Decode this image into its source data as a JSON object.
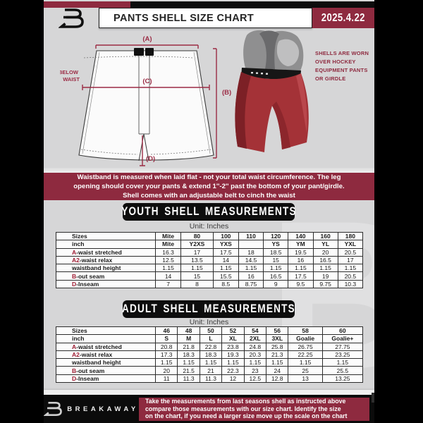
{
  "colors": {
    "maroon": "#8e2a3f",
    "black": "#0c0c0c",
    "doc_bg": "#d6d6d7",
    "table_prefix_red": "#9e1c33",
    "shell_red": "#a43237",
    "girdle_gray": "#8f8f90"
  },
  "header": {
    "title": "PANTS SHELL SIZE CHART",
    "date": "2025.4.22"
  },
  "diagram": {
    "label_a": "(A)",
    "label_b": "(B)",
    "label_c": "(C)",
    "label_d": "(D)",
    "below_waist_line1": "7'' BELOW",
    "below_waist_line2": "WAIST",
    "photo_note": "SHELLS ARE WORN\nOVER HOCKEY\nEQUIPMENT PANTS\nOR GIRDLE"
  },
  "notice": {
    "text": "Waistband is measured when laid flat - not your total waist circumference. The leg\nopening should cover your pants & extend 1''-2'' past the bottom of your pant/girdle.\nShell comes with an adjustable belt to cinch the waist"
  },
  "youth": {
    "heading": "YOUTH SHELL MEASUREMENTS",
    "unit": "Unit: Inches",
    "table": {
      "rows": [
        {
          "header": true,
          "prefix": "",
          "label": "Sizes",
          "values": [
            "Mite",
            "80",
            "100",
            "110",
            "120",
            "140",
            "160",
            "180"
          ]
        },
        {
          "header": true,
          "prefix": "",
          "label": "inch",
          "values": [
            "Mite",
            "Y2XS",
            "YXS",
            "",
            "YS",
            "YM",
            "YL",
            "YXL"
          ]
        },
        {
          "header": false,
          "prefix": "A",
          "label": "-waist stretched",
          "values": [
            "16.3",
            "17",
            "17.5",
            "18",
            "18.5",
            "19.5",
            "20",
            "20.5"
          ]
        },
        {
          "header": false,
          "prefix": "A2",
          "label": "-waist relax",
          "values": [
            "12.5",
            "13.5",
            "14",
            "14.5",
            "15",
            "16",
            "16.5",
            "17"
          ]
        },
        {
          "header": false,
          "prefix": "",
          "label": "waistband height",
          "values": [
            "1.15",
            "1.15",
            "1.15",
            "1.15",
            "1.15",
            "1.15",
            "1.15",
            "1.15"
          ]
        },
        {
          "header": false,
          "prefix": "B",
          "label": "-out seam",
          "values": [
            "14",
            "15",
            "15.5",
            "16",
            "16.5",
            "17.5",
            "19",
            "20.5"
          ]
        },
        {
          "header": false,
          "prefix": "D",
          "label": "-Inseam",
          "values": [
            "7",
            "8",
            "8.5",
            "8.75",
            "9",
            "9.5",
            "9.75",
            "10.3"
          ]
        }
      ]
    }
  },
  "adult": {
    "heading": "ADULT SHELL MEASUREMENTS",
    "unit": "Unit: Inches",
    "table": {
      "rows": [
        {
          "header": true,
          "prefix": "",
          "label": "Sizes",
          "values": [
            "46",
            "48",
            "50",
            "52",
            "54",
            "56",
            "58",
            "60"
          ]
        },
        {
          "header": true,
          "prefix": "",
          "label": "inch",
          "values": [
            "S",
            "M",
            "L",
            "XL",
            "2XL",
            "3XL",
            "Goalie",
            "Goalie+"
          ]
        },
        {
          "header": false,
          "prefix": "A",
          "label": "-waist stretched",
          "values": [
            "20.8",
            "21.8",
            "22.8",
            "23.8",
            "24.8",
            "25.8",
            "26.75",
            "27.75"
          ]
        },
        {
          "header": false,
          "prefix": "A2",
          "label": "-waist relax",
          "values": [
            "17.3",
            "18.3",
            "18.3",
            "19.3",
            "20.3",
            "21.3",
            "22.25",
            "23.25"
          ]
        },
        {
          "header": false,
          "prefix": "",
          "label": "waistband height",
          "values": [
            "1.15",
            "1.15",
            "1.15",
            "1.15",
            "1.15",
            "1.15",
            "1.15",
            "1.15"
          ]
        },
        {
          "header": false,
          "prefix": "B",
          "label": "-out seam",
          "values": [
            "20",
            "21.5",
            "21",
            "22.3",
            "23",
            "24",
            "25",
            "25.5"
          ]
        },
        {
          "header": false,
          "prefix": "D",
          "label": "-Inseam",
          "values": [
            "11",
            "11.3",
            "11.3",
            "12",
            "12.5",
            "12.8",
            "13",
            "13.25"
          ]
        }
      ]
    }
  },
  "footer": {
    "brand": "BREAKAWAY",
    "text": "Take the measurements from last seasons shell as instructed above\ncompare those measurements  with our size chart. Identify the size\non the chart, if you need a larger size move up the scale on the chart"
  },
  "watermark_glyph": "B"
}
